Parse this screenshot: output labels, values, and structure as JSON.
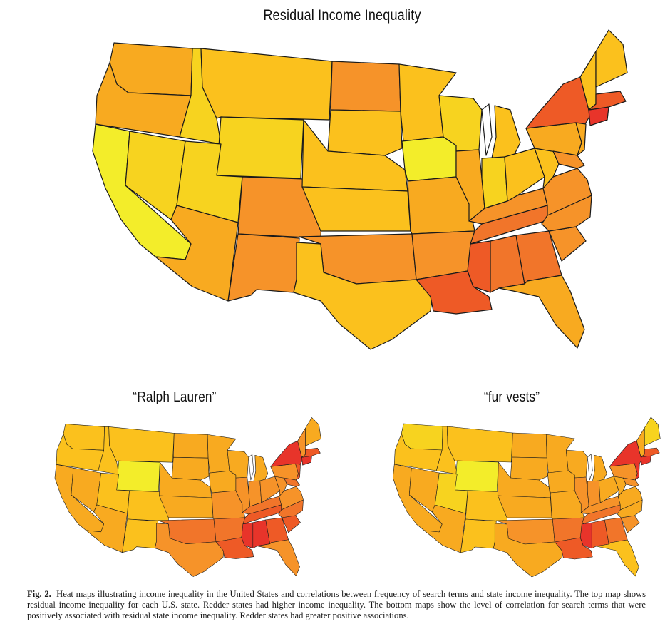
{
  "titles": {
    "main": "Residual Income Inequality",
    "left": "“Ralph Lauren”",
    "right": "“fur vests”"
  },
  "caption": {
    "label": "Fig. 2.",
    "text": "Heat maps illustrating income inequality in the United States and correlations between frequency of search terms and state income inequality. The top map shows residual income inequality for each U.S. state. Redder states had higher income inequality. The bottom maps show the level of correlation for search terms that were positively associated with residual state income inequality. Redder states had greater positive associations."
  },
  "palette": {
    "yellow": "#f3ed2a",
    "light": "#f7d31f",
    "gold": "#fbc11d",
    "amber": "#f8aa20",
    "orange": "#f69329",
    "deep": "#f1752a",
    "dark": "#ee5a26",
    "red": "#e8342a"
  },
  "maps": {
    "main": {
      "WA": "amber",
      "OR": "amber",
      "CA": "yellow",
      "NV": "light",
      "ID": "light",
      "MT": "gold",
      "WY": "light",
      "UT": "light",
      "CO": "orange",
      "AZ": "amber",
      "NM": "orange",
      "ND": "orange",
      "SD": "gold",
      "NE": "gold",
      "KS": "gold",
      "OK": "orange",
      "TX": "gold",
      "MN": "gold",
      "IA": "yellow",
      "MO": "amber",
      "AR": "orange",
      "LA": "dark",
      "WI": "light",
      "IL": "amber",
      "MI": "gold",
      "IN": "light",
      "OH": "gold",
      "KY": "orange",
      "TN": "deep",
      "MS": "dark",
      "AL": "deep",
      "GA": "deep",
      "FL": "amber",
      "SC": "orange",
      "NC": "orange",
      "VA": "orange",
      "WV": "gold",
      "PA": "amber",
      "NY": "dark",
      "NE_ENG": "gold",
      "ME": "gold",
      "NJ": "amber",
      "MD": "orange",
      "CT": "red",
      "MA": "dark"
    },
    "ralph": {
      "WA": "gold",
      "OR": "gold",
      "CA": "amber",
      "NV": "amber",
      "ID": "gold",
      "MT": "gold",
      "WY": "yellow",
      "UT": "gold",
      "CO": "gold",
      "AZ": "amber",
      "NM": "gold",
      "ND": "amber",
      "SD": "amber",
      "NE": "amber",
      "KS": "amber",
      "OK": "deep",
      "TX": "orange",
      "MN": "amber",
      "IA": "amber",
      "MO": "orange",
      "AR": "deep",
      "LA": "dark",
      "WI": "amber",
      "IL": "orange",
      "MI": "amber",
      "IN": "orange",
      "OH": "orange",
      "KY": "deep",
      "TN": "dark",
      "MS": "red",
      "AL": "red",
      "GA": "dark",
      "FL": "orange",
      "SC": "dark",
      "NC": "deep",
      "VA": "orange",
      "WV": "orange",
      "PA": "orange",
      "NY": "red",
      "NE_ENG": "orange",
      "ME": "amber",
      "NJ": "dark",
      "MD": "deep",
      "CT": "red",
      "MA": "dark"
    },
    "fur": {
      "WA": "light",
      "OR": "gold",
      "CA": "amber",
      "NV": "amber",
      "ID": "gold",
      "MT": "gold",
      "WY": "yellow",
      "UT": "light",
      "CO": "gold",
      "AZ": "amber",
      "NM": "gold",
      "ND": "amber",
      "SD": "amber",
      "NE": "amber",
      "KS": "amber",
      "OK": "orange",
      "TX": "amber",
      "MN": "amber",
      "IA": "amber",
      "MO": "amber",
      "AR": "deep",
      "LA": "dark",
      "WI": "amber",
      "IL": "orange",
      "MI": "amber",
      "IN": "orange",
      "OH": "amber",
      "KY": "orange",
      "TN": "deep",
      "MS": "red",
      "AL": "dark",
      "GA": "deep",
      "FL": "gold",
      "SC": "orange",
      "NC": "amber",
      "VA": "amber",
      "WV": "amber",
      "PA": "orange",
      "NY": "red",
      "NE_ENG": "amber",
      "ME": "light",
      "NJ": "red",
      "MD": "orange",
      "CT": "red",
      "MA": "dark"
    }
  }
}
